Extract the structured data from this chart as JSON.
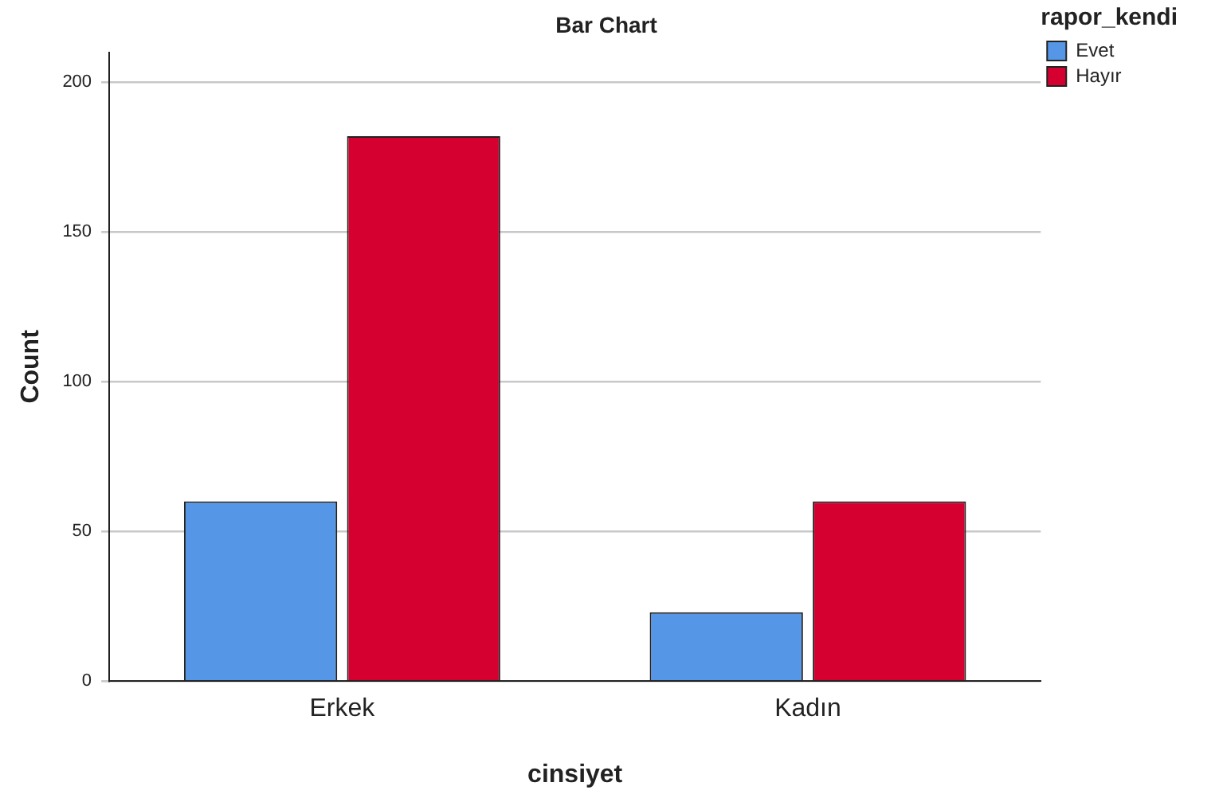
{
  "chart_data": {
    "type": "bar",
    "title": "Bar Chart",
    "xlabel": "cinsiyet",
    "ylabel": "Count",
    "legend_title": "rapor_kendi",
    "categories": [
      "Erkek",
      "Kadın"
    ],
    "series": [
      {
        "name": "Evet",
        "color": "#5596e6",
        "values": [
          60,
          23
        ]
      },
      {
        "name": "Hayır",
        "color": "#d5002f",
        "values": [
          182,
          60
        ]
      }
    ],
    "ylim": [
      0,
      210
    ],
    "yticks": [
      0,
      50,
      100,
      150,
      200
    ],
    "grid": "y",
    "legend": "top right"
  }
}
